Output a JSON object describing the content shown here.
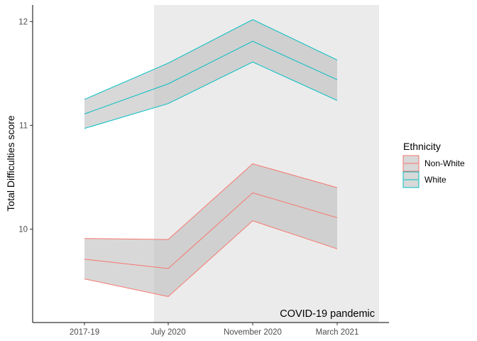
{
  "chart_data": {
    "type": "line",
    "x": [
      "2017-19",
      "July 2020",
      "November 2020",
      "March 2021"
    ],
    "ylabel": "Total Difficulties score",
    "xlabel": "",
    "ylim": [
      9.1,
      12.16
    ],
    "yticks": [
      10,
      11,
      12
    ],
    "grid": false,
    "legend": {
      "title": "Ethnicity",
      "position": "right"
    },
    "series": [
      {
        "name": "Non-White",
        "color": "#F8766D",
        "values": [
          9.71,
          9.62,
          10.35,
          10.11
        ],
        "lower": [
          9.52,
          9.35,
          10.08,
          9.81
        ],
        "upper": [
          9.91,
          9.9,
          10.63,
          10.4
        ]
      },
      {
        "name": "White",
        "color": "#00BFC4",
        "values": [
          11.11,
          11.4,
          11.81,
          11.44
        ],
        "lower": [
          10.97,
          11.21,
          11.61,
          11.24
        ],
        "upper": [
          11.25,
          11.6,
          12.02,
          11.63
        ]
      }
    ],
    "annotations": [
      {
        "text": "COVID-19 pandemic",
        "shaded_from": "July 2020",
        "shaded_to": "after March 2021",
        "shade_color": "#EBEBEB"
      }
    ],
    "ribbon_color": "#BEBEBE"
  }
}
